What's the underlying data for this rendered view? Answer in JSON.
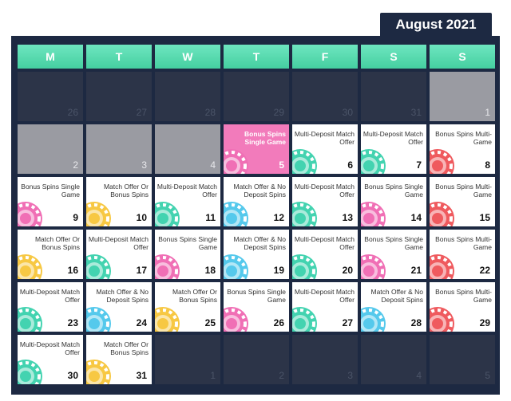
{
  "header": {
    "month": "August 2021"
  },
  "days": [
    "M",
    "T",
    "W",
    "T",
    "F",
    "S",
    "S"
  ],
  "colors": {
    "teal": "#43d3b0",
    "pink": "#f06fb5",
    "blue": "#55c9ec",
    "yellow": "#f7c843",
    "red": "#ef5a5e"
  },
  "cells": [
    {
      "day": "26",
      "bg": "dark"
    },
    {
      "day": "27",
      "bg": "dark"
    },
    {
      "day": "28",
      "bg": "dark"
    },
    {
      "day": "29",
      "bg": "dark"
    },
    {
      "day": "30",
      "bg": "dark"
    },
    {
      "day": "31",
      "bg": "dark"
    },
    {
      "day": "1",
      "bg": "grey"
    },
    {
      "day": "2",
      "bg": "grey"
    },
    {
      "day": "3",
      "bg": "grey"
    },
    {
      "day": "4",
      "bg": "grey"
    },
    {
      "day": "5",
      "bg": "pink",
      "title": "Bonus Spins Single Game",
      "chip": "pink"
    },
    {
      "day": "6",
      "bg": "white",
      "title": "Multi-Deposit Match Offer",
      "chip": "teal"
    },
    {
      "day": "7",
      "bg": "white",
      "title": "Multi-Deposit Match Offer",
      "chip": "teal"
    },
    {
      "day": "8",
      "bg": "white",
      "title": "Bonus Spins Multi-Game",
      "chip": "red"
    },
    {
      "day": "9",
      "bg": "white",
      "title": "Bonus Spins Single Game",
      "chip": "pink"
    },
    {
      "day": "10",
      "bg": "white",
      "title": "Match Offer Or Bonus Spins",
      "chip": "yellow"
    },
    {
      "day": "11",
      "bg": "white",
      "title": "Multi-Deposit Match Offer",
      "chip": "teal"
    },
    {
      "day": "12",
      "bg": "white",
      "title": "Match Offer & No Deposit Spins",
      "chip": "blue"
    },
    {
      "day": "13",
      "bg": "white",
      "title": "Multi-Deposit Match Offer",
      "chip": "teal"
    },
    {
      "day": "14",
      "bg": "white",
      "title": "Bonus Spins Single Game",
      "chip": "pink"
    },
    {
      "day": "15",
      "bg": "white",
      "title": "Bonus Spins Multi-Game",
      "chip": "red"
    },
    {
      "day": "16",
      "bg": "white",
      "title": "Match Offer Or Bonus Spins",
      "chip": "yellow"
    },
    {
      "day": "17",
      "bg": "white",
      "title": "Multi-Deposit Match Offer",
      "chip": "teal"
    },
    {
      "day": "18",
      "bg": "white",
      "title": "Bonus Spins Single Game",
      "chip": "pink"
    },
    {
      "day": "19",
      "bg": "white",
      "title": "Match Offer & No Deposit Spins",
      "chip": "blue"
    },
    {
      "day": "20",
      "bg": "white",
      "title": "Multi-Deposit Match Offer",
      "chip": "teal"
    },
    {
      "day": "21",
      "bg": "white",
      "title": "Bonus Spins Single Game",
      "chip": "pink"
    },
    {
      "day": "22",
      "bg": "white",
      "title": "Bonus Spins Multi-Game",
      "chip": "red"
    },
    {
      "day": "23",
      "bg": "white",
      "title": "Multi-Deposit Match Offer",
      "chip": "teal"
    },
    {
      "day": "24",
      "bg": "white",
      "title": "Match Offer & No Deposit Spins",
      "chip": "blue"
    },
    {
      "day": "25",
      "bg": "white",
      "title": "Match Offer Or Bonus Spins",
      "chip": "yellow"
    },
    {
      "day": "26",
      "bg": "white",
      "title": "Bonus Spins Single Game",
      "chip": "pink"
    },
    {
      "day": "27",
      "bg": "white",
      "title": "Multi-Deposit Match Offer",
      "chip": "teal"
    },
    {
      "day": "28",
      "bg": "white",
      "title": "Match Offer & No Deposit Spins",
      "chip": "blue"
    },
    {
      "day": "29",
      "bg": "white",
      "title": "Bonus Spins Multi-Game",
      "chip": "red"
    },
    {
      "day": "30",
      "bg": "white",
      "title": "Multi-Deposit Match Offer",
      "chip": "teal"
    },
    {
      "day": "31",
      "bg": "white",
      "title": "Match Offer Or Bonus Spins",
      "chip": "yellow"
    },
    {
      "day": "1",
      "bg": "dark"
    },
    {
      "day": "2",
      "bg": "dark"
    },
    {
      "day": "3",
      "bg": "dark"
    },
    {
      "day": "4",
      "bg": "dark"
    },
    {
      "day": "5",
      "bg": "dark"
    }
  ]
}
